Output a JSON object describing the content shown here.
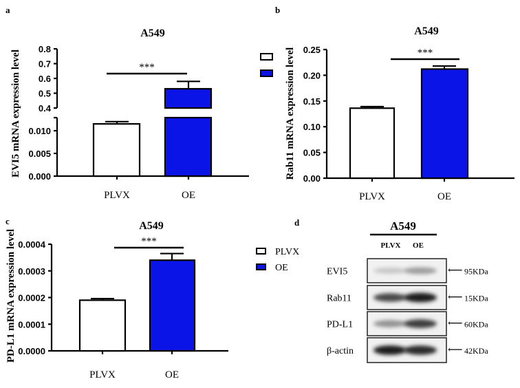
{
  "colors": {
    "plvx": "#ffffff",
    "oe": "#0a14e6",
    "axis": "#000000"
  },
  "chart_data": [
    {
      "panel": "a",
      "type": "bar",
      "title": "A549",
      "ylabel": "EVI5 mRNA expression level",
      "categories": [
        "PLVX",
        "OE"
      ],
      "values": [
        0.0115,
        0.53
      ],
      "errors": [
        0.0005,
        0.05
      ],
      "broken_axis": {
        "lower": [
          0,
          0.013
        ],
        "upper": [
          0.4,
          0.8
        ]
      },
      "lower_ticks": [
        "0.000",
        "0.005",
        "0.010"
      ],
      "upper_ticks": [
        "0.4",
        "0.5",
        "0.6",
        "0.7",
        "0.8"
      ],
      "significance": "***",
      "legend": [
        "",
        ""
      ]
    },
    {
      "panel": "b",
      "type": "bar",
      "title": "A549",
      "ylabel": "Rab11 mRNA expression level",
      "categories": [
        "PLVX",
        "OE"
      ],
      "values": [
        0.136,
        0.212
      ],
      "errors": [
        0.003,
        0.006
      ],
      "ylim": [
        0,
        0.25
      ],
      "ticks": [
        "0.00",
        "0.05",
        "0.10",
        "0.15",
        "0.20",
        "0.25"
      ],
      "significance": "***"
    },
    {
      "panel": "c",
      "type": "bar",
      "title": "A549",
      "ylabel": "PD-L1 mRNA expression level",
      "categories": [
        "PLVX",
        "OE"
      ],
      "values": [
        0.00019,
        0.00034
      ],
      "errors": [
        6e-06,
        2.5e-05
      ],
      "ylim": [
        0,
        0.0004
      ],
      "ticks": [
        "0.0000",
        "0.0001",
        "0.0002",
        "0.0003",
        "0.0004"
      ],
      "significance": "***",
      "legend": [
        "PLVX",
        "OE"
      ]
    }
  ],
  "blot": {
    "panel": "d",
    "title": "A549",
    "lanes": [
      "PLVX",
      "OE"
    ],
    "rows": [
      {
        "label": "EVI5",
        "marker": "95KDa",
        "intensity": [
          0.15,
          0.35
        ]
      },
      {
        "label": "Rab11",
        "marker": "15KDa",
        "intensity": [
          0.75,
          0.95
        ]
      },
      {
        "label": "PD-L1",
        "marker": "60KDa",
        "intensity": [
          0.4,
          0.8
        ]
      },
      {
        "label": "β-actin",
        "marker": "42KDa",
        "intensity": [
          0.95,
          0.9
        ]
      }
    ]
  }
}
